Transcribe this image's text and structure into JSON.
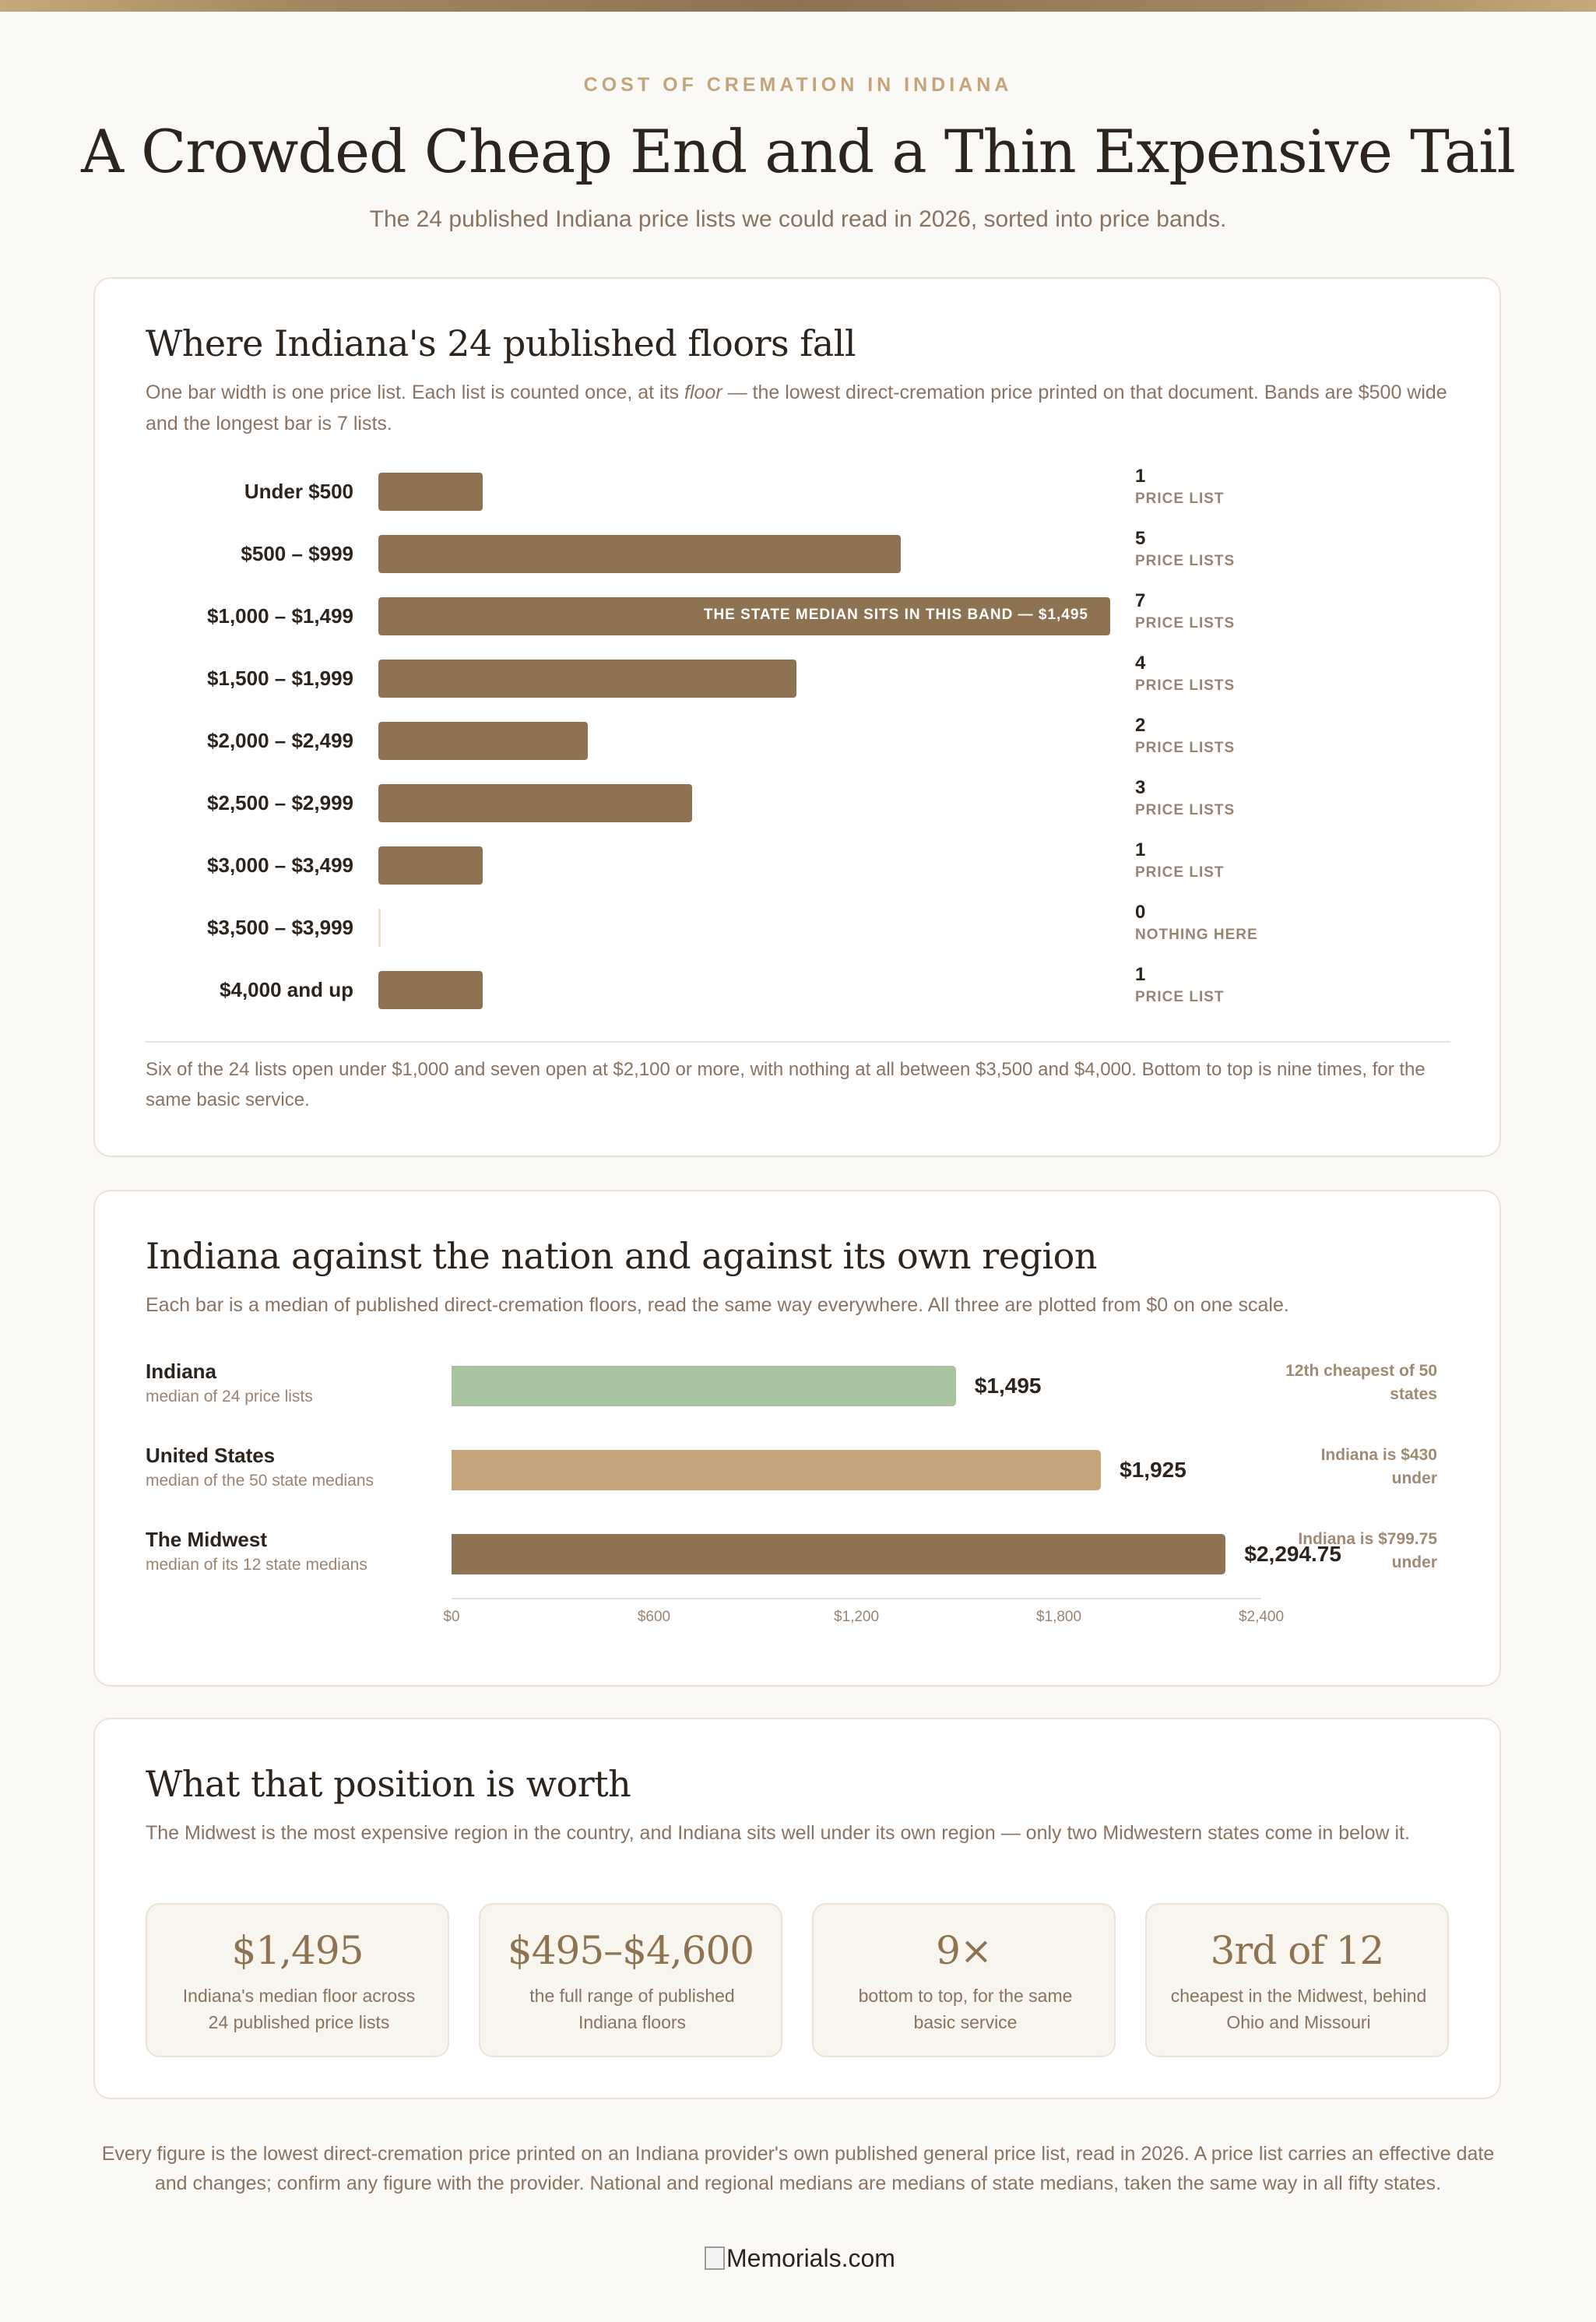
{
  "eyebrow": "COST OF CREMATION IN INDIANA",
  "headline": "A Crowded Cheap End and a Thin Expensive Tail",
  "subhead": "The 24 published Indiana price lists we could read in 2026, sorted into price bands.",
  "colors": {
    "bar_primary": "#8d7352",
    "bar_indiana": "#a8c3a0",
    "bar_us": "#c4a57b",
    "bar_midwest": "#8d7352",
    "accent_text": "#c4a57b"
  },
  "distribution": {
    "title": "Where Indiana's 24 published floors fall",
    "desc_before": "One bar width is one price list. Each list is counted once, at its ",
    "desc_emph": "floor",
    "desc_after": " — the lowest direct-cremation price printed on that document. Bands are $500 wide and the longest bar is 7 lists.",
    "median_note": "THE STATE MEDIAN SITS IN THIS BAND — $1,495",
    "footnote": "Six of the 24 lists open under $1,000 and seven open at $2,100 or more, with nothing at all between $3,500 and $4,000. Bottom to top is nine times, for the same basic service."
  },
  "comparison": {
    "title": "Indiana against the nation and against its own region",
    "desc": "Each bar is a median of published direct-cremation floors, read the same way everywhere. All three are plotted from $0 on one scale.",
    "rows": [
      {
        "name": "Indiana",
        "sub": "median of 24 price lists",
        "value_label": "$1,495",
        "note": "12th cheapest of 50 states"
      },
      {
        "name": "United States",
        "sub": "median of the 50 state medians",
        "value_label": "$1,925",
        "note": "Indiana is $430 under"
      },
      {
        "name": "The Midwest",
        "sub": "median of its 12 state medians",
        "value_label": "$2,294.75",
        "note": "Indiana is $799.75 under"
      }
    ],
    "ticks": [
      "$0",
      "$600",
      "$1,200",
      "$1,800",
      "$2,400"
    ]
  },
  "worth": {
    "title": "What that position is worth",
    "desc": "The Midwest is the most expensive region in the country, and Indiana sits well under its own region — only two Midwestern states come in below it.",
    "stats": [
      {
        "big": "$1,495",
        "cap": "Indiana's median floor across 24 published price lists"
      },
      {
        "big": "$495–$4,600",
        "cap": "the full range of published Indiana floors"
      },
      {
        "big": "9×",
        "cap": "bottom to top, for the same basic service"
      },
      {
        "big": "3rd of 12",
        "cap": "cheapest in the Midwest, behind Ohio and Missouri"
      }
    ]
  },
  "footer": "Every figure is the lowest direct-cremation price printed on an Indiana provider's own published general price list, read in 2026. A price list carries an effective date and changes; confirm any figure with the provider. National and regional medians are medians of state medians, taken the same way in all fifty states.",
  "logo_alt": "Memorials.com",
  "chart_data": [
    {
      "type": "bar",
      "orientation": "horizontal",
      "title": "Where Indiana's 24 published floors fall",
      "categories": [
        "Under $500",
        "$500 – $999",
        "$1,000 – $1,499",
        "$1,500 – $1,999",
        "$2,000 – $2,499",
        "$2,500 – $2,999",
        "$3,000 – $3,499",
        "$3,500 – $3,999",
        "$4,000 and up"
      ],
      "values": [
        1,
        5,
        7,
        4,
        2,
        3,
        1,
        0,
        1
      ],
      "value_units": [
        "PRICE LIST",
        "PRICE LISTS",
        "PRICE LISTS",
        "PRICE LISTS",
        "PRICE LISTS",
        "PRICE LISTS",
        "PRICE LIST",
        "NOTHING HERE",
        "PRICE LIST"
      ],
      "xlim": [
        0,
        7
      ],
      "annotations": [
        {
          "category": "$1,000 – $1,499",
          "text": "THE STATE MEDIAN SITS IN THIS BAND — $1,495"
        }
      ],
      "grid": false
    },
    {
      "type": "bar",
      "orientation": "horizontal",
      "title": "Indiana against the nation and against its own region",
      "categories": [
        "Indiana",
        "United States",
        "The Midwest"
      ],
      "values": [
        1495,
        1925,
        2294.75
      ],
      "xlim": [
        0,
        2400
      ],
      "xticks": [
        0,
        600,
        1200,
        1800,
        2400
      ],
      "grid": false
    }
  ]
}
